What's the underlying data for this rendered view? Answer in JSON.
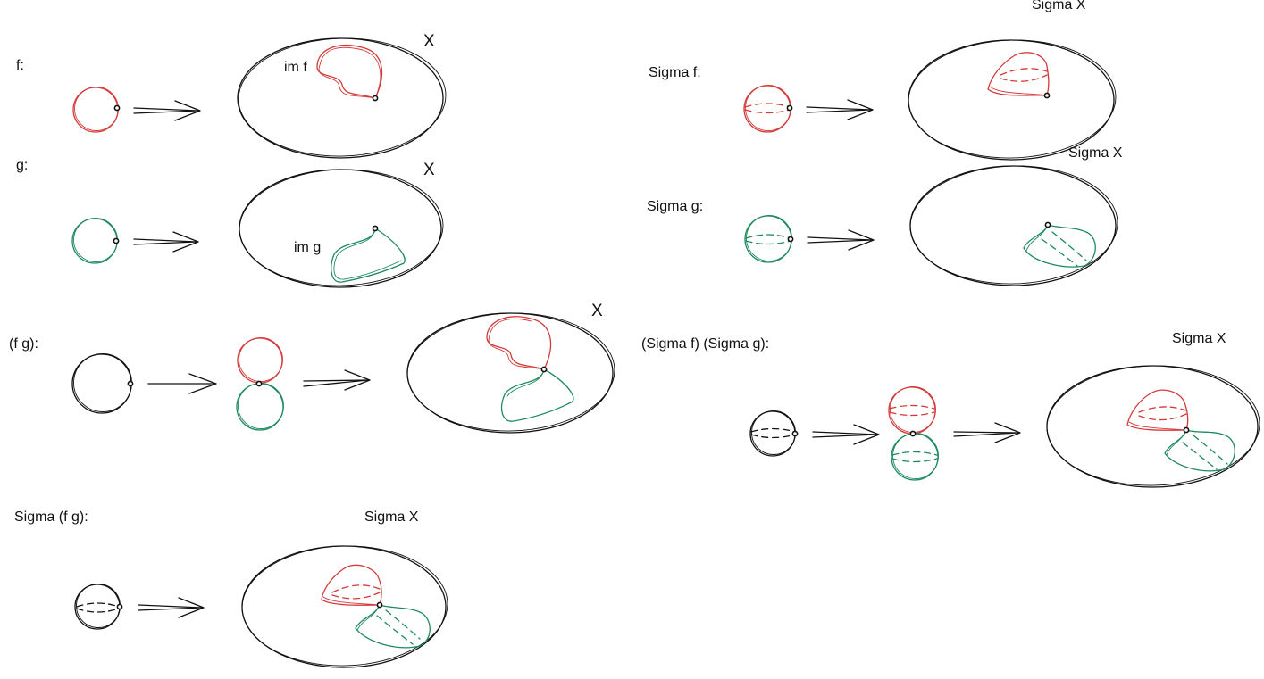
{
  "labels": {
    "f": "f:",
    "g": "g:",
    "fg": "(f g):",
    "sigma_fg": "Sigma (f g):",
    "sigma_f": "Sigma f:",
    "sigma_g": "Sigma g:",
    "sigma_f_sigma_g": "(Sigma f) (Sigma g):"
  },
  "space_labels": {
    "x": "X",
    "sigma_x": "Sigma X"
  },
  "image_labels": {
    "im_f": "im f",
    "im_g": "im g"
  },
  "colors": {
    "f_loop": "#d43a3a",
    "g_loop": "#1e8a5e",
    "ink": "#111111"
  }
}
